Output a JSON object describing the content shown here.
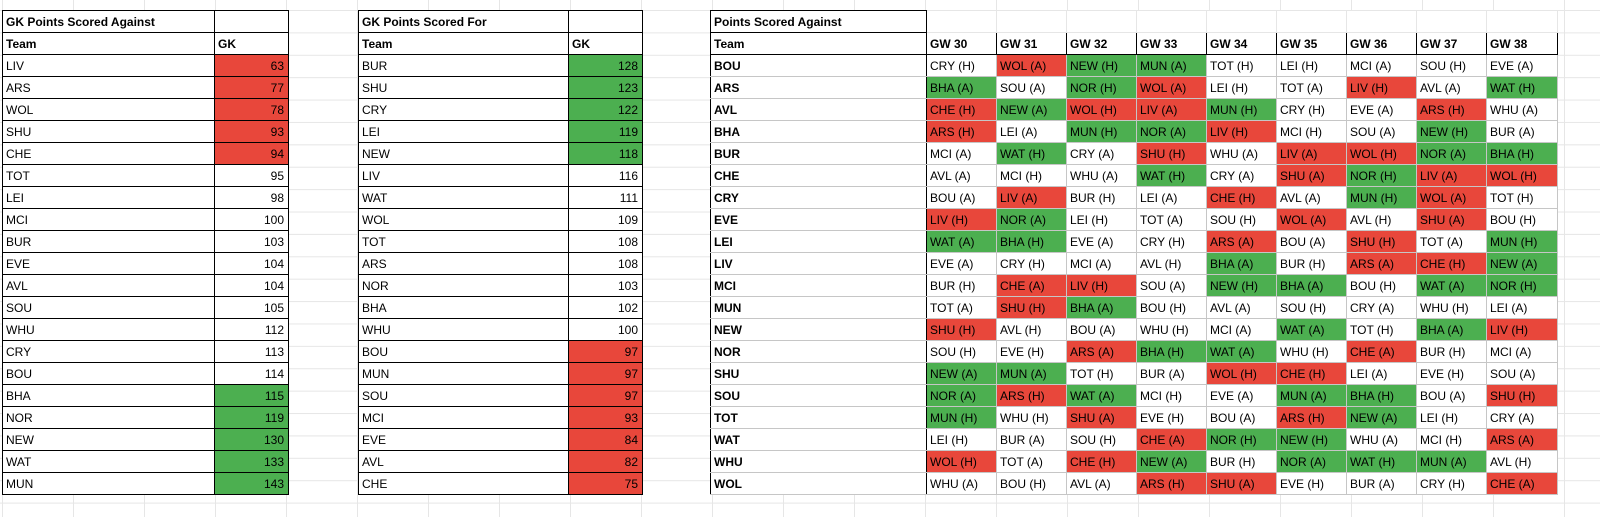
{
  "colors": {
    "red": "#e8473b",
    "green": "#4caf50",
    "grid": "#e6e6e6"
  },
  "gk_against": {
    "title": "GK Points Scored Against",
    "headers": [
      "Team",
      "GK"
    ],
    "rows": [
      [
        "LIV",
        63,
        "r"
      ],
      [
        "ARS",
        77,
        "r"
      ],
      [
        "WOL",
        78,
        "r"
      ],
      [
        "SHU",
        93,
        "r"
      ],
      [
        "CHE",
        94,
        "r"
      ],
      [
        "TOT",
        95,
        "w"
      ],
      [
        "LEI",
        98,
        "w"
      ],
      [
        "MCI",
        100,
        "w"
      ],
      [
        "BUR",
        103,
        "w"
      ],
      [
        "EVE",
        104,
        "w"
      ],
      [
        "AVL",
        104,
        "w"
      ],
      [
        "SOU",
        105,
        "w"
      ],
      [
        "WHU",
        112,
        "w"
      ],
      [
        "CRY",
        113,
        "w"
      ],
      [
        "BOU",
        114,
        "w"
      ],
      [
        "BHA",
        115,
        "g"
      ],
      [
        "NOR",
        119,
        "g"
      ],
      [
        "NEW",
        130,
        "g"
      ],
      [
        "WAT",
        133,
        "g"
      ],
      [
        "MUN",
        143,
        "g"
      ]
    ]
  },
  "gk_for": {
    "title": "GK Points Scored For",
    "headers": [
      "Team",
      "GK"
    ],
    "rows": [
      [
        "BUR",
        128,
        "g"
      ],
      [
        "SHU",
        123,
        "g"
      ],
      [
        "CRY",
        122,
        "g"
      ],
      [
        "LEI",
        119,
        "g"
      ],
      [
        "NEW",
        118,
        "g"
      ],
      [
        "LIV",
        116,
        "w"
      ],
      [
        "WAT",
        111,
        "w"
      ],
      [
        "WOL",
        109,
        "w"
      ],
      [
        "TOT",
        108,
        "w"
      ],
      [
        "ARS",
        108,
        "w"
      ],
      [
        "NOR",
        103,
        "w"
      ],
      [
        "BHA",
        102,
        "w"
      ],
      [
        "WHU",
        100,
        "w"
      ],
      [
        "BOU",
        97,
        "r"
      ],
      [
        "MUN",
        97,
        "r"
      ],
      [
        "SOU",
        97,
        "r"
      ],
      [
        "MCI",
        93,
        "r"
      ],
      [
        "EVE",
        84,
        "r"
      ],
      [
        "AVL",
        82,
        "r"
      ],
      [
        "CHE",
        75,
        "r"
      ]
    ]
  },
  "fixtures": {
    "title": "Points Scored Against",
    "team_header": "Team",
    "gw_headers": [
      "GW 30",
      "GW 31",
      "GW 32",
      "GW 33",
      "GW 34",
      "GW 35",
      "GW 36",
      "GW 37",
      "GW 38"
    ],
    "rows": [
      {
        "team": "BOU",
        "cells": [
          "CRY (H)",
          "WOL (A)",
          "NEW (H)",
          "MUN (A)",
          "TOT (H)",
          "LEI (H)",
          "MCI (A)",
          "SOU (H)",
          "EVE (A)"
        ],
        "colors": "wrggwwwww"
      },
      {
        "team": "ARS",
        "cells": [
          "BHA (A)",
          "SOU (A)",
          "NOR (H)",
          "WOL (A)",
          "LEI (H)",
          "TOT (A)",
          "LIV (H)",
          "AVL (A)",
          "WAT (H)"
        ],
        "colors": "gwgrwwrwg"
      },
      {
        "team": "AVL",
        "cells": [
          "CHE (H)",
          "NEW (A)",
          "WOL (H)",
          "LIV (A)",
          "MUN (H)",
          "CRY (H)",
          "EVE (A)",
          "ARS (H)",
          "WHU (A)"
        ],
        "colors": "rgrrgwwrw"
      },
      {
        "team": "BHA",
        "cells": [
          "ARS (H)",
          "LEI (A)",
          "MUN (H)",
          "NOR (A)",
          "LIV (H)",
          "MCI (H)",
          "SOU (A)",
          "NEW (H)",
          "BUR (A)"
        ],
        "colors": "rwggrwwgw"
      },
      {
        "team": "BUR",
        "cells": [
          "MCI (A)",
          "WAT (H)",
          "CRY (A)",
          "SHU (H)",
          "WHU (A)",
          "LIV (A)",
          "WOL (H)",
          "NOR (A)",
          "BHA (H)"
        ],
        "colors": "wgwrwrrgg"
      },
      {
        "team": "CHE",
        "cells": [
          "AVL (A)",
          "MCI (H)",
          "WHU (A)",
          "WAT (H)",
          "CRY (A)",
          "SHU (A)",
          "NOR (H)",
          "LIV (A)",
          "WOL (H)"
        ],
        "colors": "wwwgwrgrr"
      },
      {
        "team": "CRY",
        "cells": [
          "BOU (A)",
          "LIV (A)",
          "BUR (H)",
          "LEI (A)",
          "CHE (H)",
          "AVL (A)",
          "MUN (H)",
          "WOL (A)",
          "TOT (H)"
        ],
        "colors": "wrwwrwgrw"
      },
      {
        "team": "EVE",
        "cells": [
          "LIV (H)",
          "NOR (A)",
          "LEI (H)",
          "TOT (A)",
          "SOU (H)",
          "WOL (A)",
          "AVL (H)",
          "SHU (A)",
          "BOU (H)"
        ],
        "colors": "rgwwwrwrw"
      },
      {
        "team": "LEI",
        "cells": [
          "WAT (A)",
          "BHA (H)",
          "EVE (A)",
          "CRY (H)",
          "ARS (A)",
          "BOU (A)",
          "SHU (H)",
          "TOT (A)",
          "MUN (H)"
        ],
        "colors": "ggwwrwrwg"
      },
      {
        "team": "LIV",
        "cells": [
          "EVE (A)",
          "CRY (H)",
          "MCI (A)",
          "AVL (H)",
          "BHA (A)",
          "BUR (H)",
          "ARS (A)",
          "CHE (H)",
          "NEW (A)"
        ],
        "colors": "wwwwgwrrg"
      },
      {
        "team": "MCI",
        "cells": [
          "BUR (H)",
          "CHE (A)",
          "LIV (H)",
          "SOU (A)",
          "NEW (H)",
          "BHA (A)",
          "BOU (H)",
          "WAT (A)",
          "NOR (H)"
        ],
        "colors": "wrrwggwgg"
      },
      {
        "team": "MUN",
        "cells": [
          "TOT (A)",
          "SHU (H)",
          "BHA (A)",
          "BOU (H)",
          "AVL (A)",
          "SOU (H)",
          "CRY (A)",
          "WHU (H)",
          "LEI (A)"
        ],
        "colors": "wrgwwwwww"
      },
      {
        "team": "NEW",
        "cells": [
          "SHU (H)",
          "AVL (H)",
          "BOU (A)",
          "WHU (H)",
          "MCI (A)",
          "WAT (A)",
          "TOT (H)",
          "BHA (A)",
          "LIV (H)"
        ],
        "colors": "rwwwwgwgr"
      },
      {
        "team": "NOR",
        "cells": [
          "SOU (H)",
          "EVE (H)",
          "ARS (A)",
          "BHA (H)",
          "WAT (A)",
          "WHU (H)",
          "CHE (A)",
          "BUR (H)",
          "MCI (A)"
        ],
        "colors": "wwrggwrww"
      },
      {
        "team": "SHU",
        "cells": [
          "NEW (A)",
          "MUN (A)",
          "TOT (H)",
          "BUR (A)",
          "WOL (H)",
          "CHE (H)",
          "LEI (A)",
          "EVE (H)",
          "SOU (A)"
        ],
        "colors": "ggwwrrwww"
      },
      {
        "team": "SOU",
        "cells": [
          "NOR (A)",
          "ARS (H)",
          "WAT (A)",
          "MCI (H)",
          "EVE (A)",
          "MUN (A)",
          "BHA (H)",
          "BOU (A)",
          "SHU (H)"
        ],
        "colors": "grgwwggwr"
      },
      {
        "team": "TOT",
        "cells": [
          "MUN (H)",
          "WHU (H)",
          "SHU (A)",
          "EVE (H)",
          "BOU (A)",
          "ARS (H)",
          "NEW (A)",
          "LEI (H)",
          "CRY (A)"
        ],
        "colors": "gwrwwrgww"
      },
      {
        "team": "WAT",
        "cells": [
          "LEI (H)",
          "BUR (A)",
          "SOU (H)",
          "CHE (A)",
          "NOR (H)",
          "NEW (H)",
          "WHU (A)",
          "MCI (H)",
          "ARS (A)"
        ],
        "colors": "wwwrggwwr"
      },
      {
        "team": "WHU",
        "cells": [
          "WOL (H)",
          "TOT (A)",
          "CHE (H)",
          "NEW (A)",
          "BUR (H)",
          "NOR (A)",
          "WAT (H)",
          "MUN (A)",
          "AVL (H)"
        ],
        "colors": "rwrgwgggw"
      },
      {
        "team": "WOL",
        "cells": [
          "WHU (A)",
          "BOU (H)",
          "AVL (A)",
          "ARS (H)",
          "SHU (A)",
          "EVE (H)",
          "BUR (A)",
          "CRY (H)",
          "CHE (A)"
        ],
        "colors": "wwwrrwwwr"
      }
    ]
  }
}
